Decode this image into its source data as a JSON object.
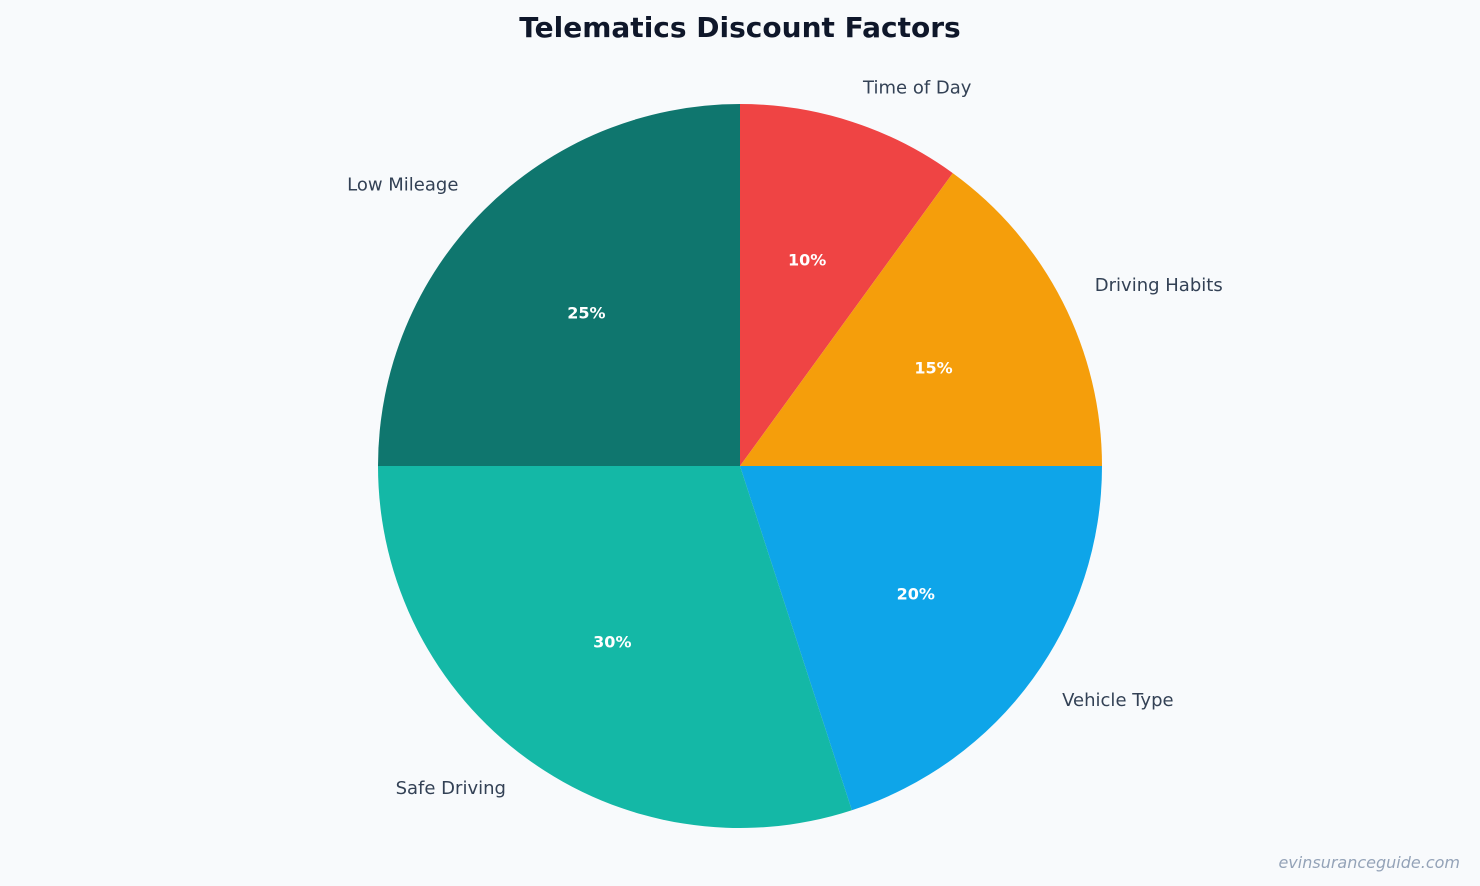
{
  "chart_data": {
    "type": "pie",
    "title": "Telematics Discount Factors",
    "slices": [
      {
        "label": "Time of Day",
        "value": 10,
        "value_label": "10%",
        "color": "#ef4444"
      },
      {
        "label": "Driving Habits",
        "value": 15,
        "value_label": "15%",
        "color": "#f59e0b"
      },
      {
        "label": "Vehicle Type",
        "value": 20,
        "value_label": "20%",
        "color": "#0ea5e9"
      },
      {
        "label": "Safe Driving",
        "value": 30,
        "value_label": "30%",
        "color": "#14b8a6"
      },
      {
        "label": "Low Mileage",
        "value": 25,
        "value_label": "25%",
        "color": "#0f766e"
      }
    ],
    "start_angle": "top",
    "direction": "clockwise",
    "legend": "none"
  },
  "watermark": "evinsuranceguide.com"
}
